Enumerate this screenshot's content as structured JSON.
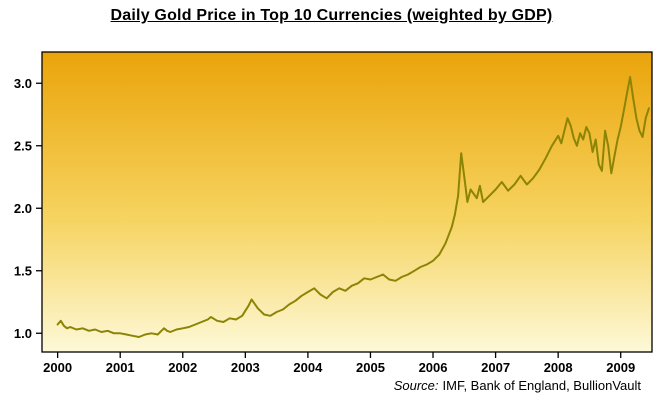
{
  "page": {
    "title": "Daily Gold Price in Top 10 Currencies (weighted by GDP)"
  },
  "source": {
    "prefix": "Source:",
    "text": "IMF, Bank of England, BullionVault"
  },
  "chart_data": {
    "type": "line",
    "title": "Daily Gold Price in Top 10 Currencies (weighted by GDP)",
    "xlabel": "",
    "ylabel": "",
    "xlim": [
      1999.75,
      2009.5
    ],
    "ylim": [
      0.85,
      3.25
    ],
    "xticks": [
      2000,
      2001,
      2002,
      2003,
      2004,
      2005,
      2006,
      2007,
      2008,
      2009
    ],
    "yticks": [
      1.0,
      1.5,
      2.0,
      2.5,
      3.0
    ],
    "grid": false,
    "legend": null,
    "line_color": "#8c8405",
    "line_width": 2,
    "frame_color": "#000000",
    "plot_bg_gradient": [
      {
        "offset": 0,
        "color": "#eaa40a"
      },
      {
        "offset": 0.55,
        "color": "#f6d35f"
      },
      {
        "offset": 1,
        "color": "#fdf9d8"
      }
    ],
    "x": [
      2000.0,
      2000.05,
      2000.1,
      2000.15,
      2000.2,
      2000.3,
      2000.4,
      2000.5,
      2000.6,
      2000.7,
      2000.8,
      2000.9,
      2001.0,
      2001.1,
      2001.2,
      2001.3,
      2001.4,
      2001.5,
      2001.6,
      2001.7,
      2001.75,
      2001.8,
      2001.9,
      2002.0,
      2002.1,
      2002.2,
      2002.3,
      2002.4,
      2002.45,
      2002.55,
      2002.65,
      2002.75,
      2002.85,
      2002.95,
      2003.0,
      2003.05,
      2003.1,
      2003.2,
      2003.3,
      2003.4,
      2003.5,
      2003.6,
      2003.7,
      2003.8,
      2003.9,
      2004.0,
      2004.1,
      2004.2,
      2004.3,
      2004.4,
      2004.5,
      2004.6,
      2004.7,
      2004.8,
      2004.9,
      2005.0,
      2005.1,
      2005.2,
      2005.3,
      2005.4,
      2005.5,
      2005.6,
      2005.7,
      2005.8,
      2005.9,
      2006.0,
      2006.1,
      2006.2,
      2006.3,
      2006.35,
      2006.4,
      2006.45,
      2006.5,
      2006.55,
      2006.6,
      2006.7,
      2006.75,
      2006.8,
      2006.9,
      2007.0,
      2007.1,
      2007.2,
      2007.3,
      2007.4,
      2007.5,
      2007.6,
      2007.7,
      2007.8,
      2007.9,
      2008.0,
      2008.05,
      2008.1,
      2008.15,
      2008.2,
      2008.25,
      2008.3,
      2008.35,
      2008.4,
      2008.45,
      2008.5,
      2008.55,
      2008.6,
      2008.65,
      2008.7,
      2008.75,
      2008.8,
      2008.85,
      2008.9,
      2008.95,
      2009.0,
      2009.05,
      2009.1,
      2009.15,
      2009.2,
      2009.25,
      2009.3,
      2009.35,
      2009.4,
      2009.45
    ],
    "y": [
      1.07,
      1.1,
      1.06,
      1.04,
      1.05,
      1.03,
      1.04,
      1.02,
      1.03,
      1.01,
      1.02,
      1.0,
      1.0,
      0.99,
      0.98,
      0.97,
      0.99,
      1.0,
      0.99,
      1.04,
      1.02,
      1.01,
      1.03,
      1.04,
      1.05,
      1.07,
      1.09,
      1.11,
      1.13,
      1.1,
      1.09,
      1.12,
      1.11,
      1.14,
      1.18,
      1.22,
      1.27,
      1.2,
      1.15,
      1.14,
      1.17,
      1.19,
      1.23,
      1.26,
      1.3,
      1.33,
      1.36,
      1.31,
      1.28,
      1.33,
      1.36,
      1.34,
      1.38,
      1.4,
      1.44,
      1.43,
      1.45,
      1.47,
      1.43,
      1.42,
      1.45,
      1.47,
      1.5,
      1.53,
      1.55,
      1.58,
      1.63,
      1.72,
      1.85,
      1.95,
      2.1,
      2.44,
      2.25,
      2.05,
      2.15,
      2.08,
      2.18,
      2.05,
      2.1,
      2.15,
      2.21,
      2.14,
      2.19,
      2.26,
      2.19,
      2.24,
      2.31,
      2.4,
      2.5,
      2.58,
      2.52,
      2.62,
      2.72,
      2.66,
      2.56,
      2.5,
      2.6,
      2.55,
      2.65,
      2.6,
      2.45,
      2.55,
      2.35,
      2.3,
      2.62,
      2.5,
      2.28,
      2.42,
      2.55,
      2.65,
      2.78,
      2.92,
      3.05,
      2.88,
      2.72,
      2.62,
      2.57,
      2.72,
      2.8
    ]
  }
}
